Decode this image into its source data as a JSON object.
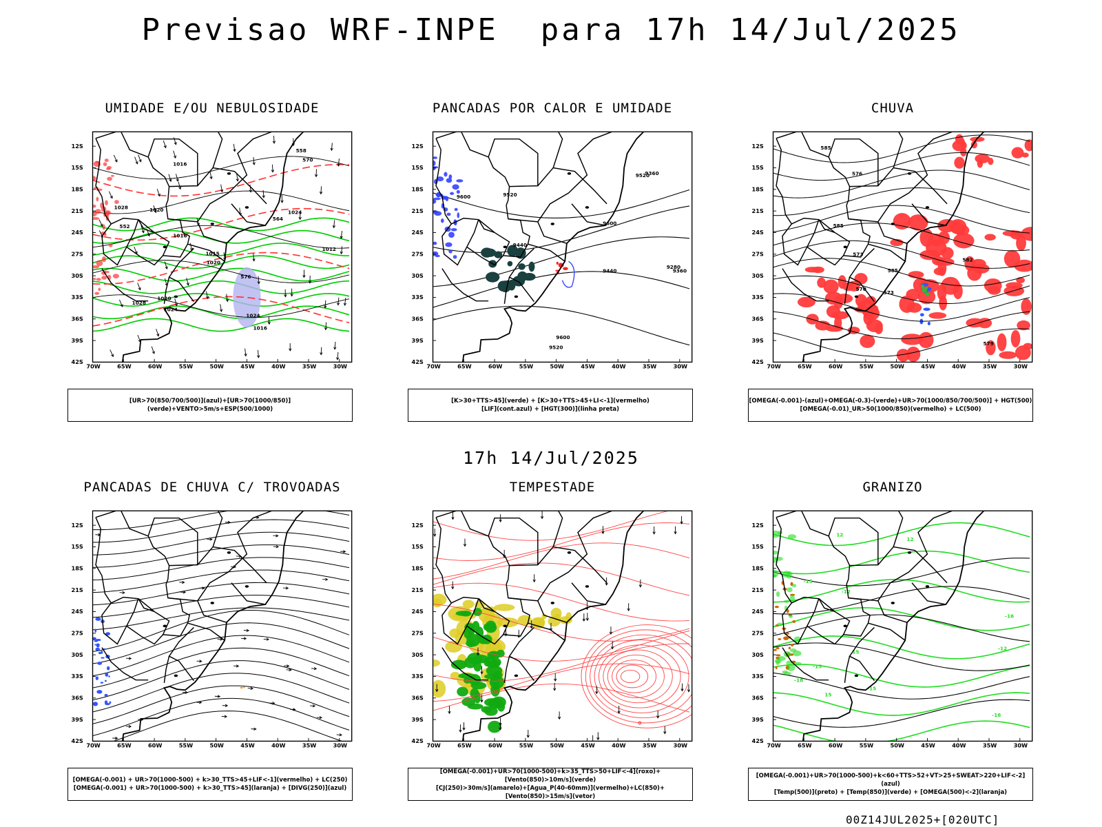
{
  "header": {
    "title": "Previsao WRF-INPE  para 17h 14/Jul/2025",
    "subtitle": "17h 14/Jul/2025",
    "stamp": "00Z14JUL2025+[020UTC]"
  },
  "axes": {
    "lat_labels": [
      "12S",
      "15S",
      "18S",
      "21S",
      "24S",
      "27S",
      "30S",
      "33S",
      "36S",
      "39S",
      "42S"
    ],
    "lon_labels": [
      "70W",
      "65W",
      "60W",
      "55W",
      "50W",
      "45W",
      "40W",
      "35W",
      "30W"
    ]
  },
  "panels": [
    {
      "title": "UMIDADE E/OU NEBULOSIDADE",
      "legend": [
        "[UR>70(850/700/500)](azul)+[UR>70(1000/850)](verde)+VENTO>5m/s+ESP(500/1000)"
      ],
      "contour_labels": [
        "1016",
        "1016",
        "1020",
        "1020",
        "1024",
        "1024",
        "1012",
        "1016",
        "1020",
        "1024",
        "1028",
        "1028",
        "1015",
        "576",
        "564",
        "558",
        "552",
        "570"
      ],
      "colors": {
        "low_humidity": "#00cc00",
        "mid_humidity": "#b3b3f0",
        "thickness": "#ff3333",
        "isobar": "#000000"
      }
    },
    {
      "title": "PANCADAS POR CALOR E UMIDADE",
      "legend": [
        "[K>30+TTS>45](verde) + [K>30+TTS>45+LI<-1](vermelho)",
        "[LIF](cont.azul) + [HGT(300)](linha preta)"
      ],
      "contour_labels": [
        "9600",
        "9520",
        "9600",
        "9600",
        "9520",
        "9520",
        "9440",
        "9440",
        "9360",
        "9360",
        "9280"
      ],
      "colors": {
        "unstable": "#1a4040",
        "lif": "#3344ff",
        "li_neg": "#ff2222"
      }
    },
    {
      "title": "CHUVA",
      "legend": [
        "[OMEGA(-0.001)-(azul)+OMEGA(-0.3)-(verde)+UR>70(1000/850/700/500)] + HGT(500)",
        "[OMEGA(-0.01)_UR>50(1000/850)(vermelho) + LC(500)"
      ],
      "contour_labels": [
        "585",
        "585",
        "585",
        "582",
        "579",
        "576",
        "573",
        "573",
        "570"
      ],
      "colors": {
        "rain": "#ff3b3b",
        "strong": "#3355ff",
        "moderate": "#33bb33"
      }
    },
    {
      "title": "PANCADAS DE CHUVA C/ TROVOADAS",
      "legend": [
        "[OMEGA(-0.001) + UR>70(1000-500) + k>30_TTS>45+LIF<-1](vermelho) + LC(250)",
        "[OMEGA(-0.001) + UR>70(1000-500) + k>30_TTS>45](laranja) + [DIVG(250)](azul)"
      ],
      "contour_labels": [],
      "colors": {
        "divg": "#3355ff",
        "orange": "#ff8800"
      }
    },
    {
      "title": "TEMPESTADE",
      "legend": [
        "[OMEGA(-0.001)+UR>70(1000-500)+k>35_TTS>50+LIF<-4](roxo)+[Vento(850)>10m/s](verde)",
        "[CJ(250)>30m/s](amarelo)+[Agua_P(40-60mm)](vermelho)+LC(850)+[Vento(850)>15m/s](vetor)"
      ],
      "contour_labels": [
        "0"
      ],
      "colors": {
        "jet": "#ddcc22",
        "wind": "#11aa11",
        "streamline": "#ff4444"
      }
    },
    {
      "title": "GRANIZO",
      "legend": [
        "[OMEGA(-0.001)+UR>70(1000-500)+k<60+TTS>52+VT>25+SWEAT>220+LIF<-2](azul)",
        "[Temp(500)](preto) + [Temp(850)](verde) + [OMEGA(500)<-2](laranja)"
      ],
      "contour_labels": [
        "-12",
        "-15",
        "-15",
        "-15",
        "-12",
        "-16",
        "-16",
        "15",
        "15",
        "12",
        "12",
        "-18"
      ],
      "colors": {
        "t850": "#22dd22",
        "t500": "#000000",
        "omega": "#cc6600"
      }
    }
  ]
}
